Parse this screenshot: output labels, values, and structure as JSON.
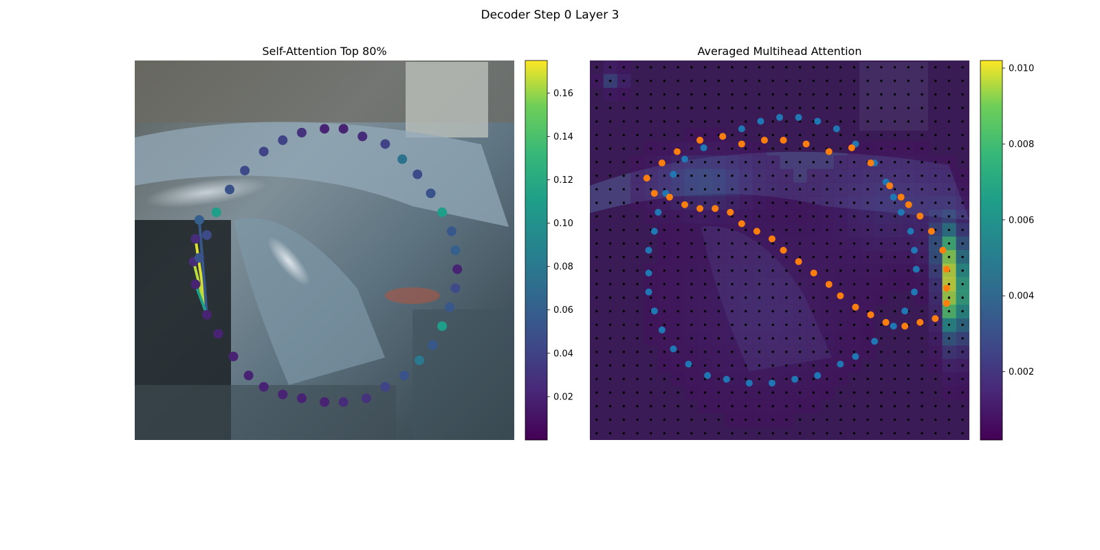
{
  "figure": {
    "suptitle": "Decoder Step 0 Layer 3"
  },
  "chart_data": [
    {
      "type": "scatter",
      "title": "Self-Attention Top 80%",
      "xlabel": "",
      "ylabel": "",
      "colormap": "viridis",
      "colorbar": {
        "min": 0.0,
        "max": 0.175,
        "ticks": [
          0.02,
          0.04,
          0.06,
          0.08,
          0.1,
          0.12,
          0.14,
          0.16
        ]
      },
      "query_point": 4,
      "points": [
        {
          "x": 0.17,
          "y": 0.42,
          "v": 0.06
        },
        {
          "x": 0.16,
          "y": 0.47,
          "v": 0.025
        },
        {
          "x": 0.155,
          "y": 0.53,
          "v": 0.025
        },
        {
          "x": 0.16,
          "y": 0.59,
          "v": 0.02
        },
        {
          "x": 0.19,
          "y": 0.67,
          "v": 0.02
        },
        {
          "x": 0.22,
          "y": 0.72,
          "v": 0.02
        },
        {
          "x": 0.26,
          "y": 0.78,
          "v": 0.02
        },
        {
          "x": 0.3,
          "y": 0.83,
          "v": 0.02
        },
        {
          "x": 0.34,
          "y": 0.86,
          "v": 0.02
        },
        {
          "x": 0.39,
          "y": 0.88,
          "v": 0.02
        },
        {
          "x": 0.44,
          "y": 0.89,
          "v": 0.02
        },
        {
          "x": 0.5,
          "y": 0.9,
          "v": 0.02
        },
        {
          "x": 0.55,
          "y": 0.9,
          "v": 0.025
        },
        {
          "x": 0.61,
          "y": 0.89,
          "v": 0.03
        },
        {
          "x": 0.66,
          "y": 0.86,
          "v": 0.04
        },
        {
          "x": 0.71,
          "y": 0.83,
          "v": 0.05
        },
        {
          "x": 0.75,
          "y": 0.79,
          "v": 0.08
        },
        {
          "x": 0.785,
          "y": 0.75,
          "v": 0.055
        },
        {
          "x": 0.81,
          "y": 0.7,
          "v": 0.11
        },
        {
          "x": 0.83,
          "y": 0.65,
          "v": 0.055
        },
        {
          "x": 0.845,
          "y": 0.6,
          "v": 0.045
        },
        {
          "x": 0.85,
          "y": 0.55,
          "v": 0.02
        },
        {
          "x": 0.845,
          "y": 0.5,
          "v": 0.06
        },
        {
          "x": 0.835,
          "y": 0.45,
          "v": 0.055
        },
        {
          "x": 0.81,
          "y": 0.4,
          "v": 0.11
        },
        {
          "x": 0.78,
          "y": 0.35,
          "v": 0.05
        },
        {
          "x": 0.745,
          "y": 0.3,
          "v": 0.045
        },
        {
          "x": 0.705,
          "y": 0.26,
          "v": 0.075
        },
        {
          "x": 0.66,
          "y": 0.22,
          "v": 0.04
        },
        {
          "x": 0.6,
          "y": 0.2,
          "v": 0.025
        },
        {
          "x": 0.55,
          "y": 0.18,
          "v": 0.02
        },
        {
          "x": 0.5,
          "y": 0.18,
          "v": 0.02
        },
        {
          "x": 0.44,
          "y": 0.19,
          "v": 0.03
        },
        {
          "x": 0.39,
          "y": 0.21,
          "v": 0.04
        },
        {
          "x": 0.34,
          "y": 0.24,
          "v": 0.04
        },
        {
          "x": 0.29,
          "y": 0.29,
          "v": 0.045
        },
        {
          "x": 0.25,
          "y": 0.34,
          "v": 0.05
        },
        {
          "x": 0.215,
          "y": 0.4,
          "v": 0.11
        },
        {
          "x": 0.19,
          "y": 0.46,
          "v": 0.045
        },
        {
          "x": 0.17,
          "y": 0.52,
          "v": 0.05
        }
      ],
      "edges": [
        {
          "from": 4,
          "to": 1,
          "v": 0.17
        },
        {
          "from": 4,
          "to": 2,
          "v": 0.165
        },
        {
          "from": 4,
          "to": 0,
          "v": 0.055
        },
        {
          "from": 4,
          "to": 3,
          "v": 0.11
        }
      ]
    },
    {
      "type": "heatmap",
      "title": "Averaged Multihead Attention",
      "xlabel": "",
      "ylabel": "",
      "colormap": "viridis",
      "colorbar": {
        "min": 0.0002,
        "max": 0.0102,
        "ticks": [
          0.002,
          0.004,
          0.006,
          0.008,
          0.01
        ]
      },
      "grid": {
        "cols": 28,
        "rows": 28,
        "reference_points": true
      },
      "hotspots": [
        {
          "x": 0.96,
          "y": 0.62,
          "sx": 0.025,
          "sy": 0.09,
          "v": 0.0098
        },
        {
          "x": 0.94,
          "y": 0.49,
          "sx": 0.03,
          "sy": 0.06,
          "v": 0.0045
        },
        {
          "x": 0.3,
          "y": 0.32,
          "sx": 0.08,
          "sy": 0.05,
          "v": 0.0028
        },
        {
          "x": 0.06,
          "y": 0.05,
          "sx": 0.02,
          "sy": 0.02,
          "v": 0.003
        },
        {
          "x": 0.8,
          "y": 0.4,
          "sx": 0.1,
          "sy": 0.08,
          "v": 0.0015
        },
        {
          "x": 0.45,
          "y": 0.65,
          "sx": 0.15,
          "sy": 0.15,
          "v": 0.0008
        }
      ],
      "series": [
        {
          "color": "#1f77b4",
          "points": [
            [
              0.17,
              0.45
            ],
            [
              0.155,
              0.5
            ],
            [
              0.155,
              0.56
            ],
            [
              0.155,
              0.61
            ],
            [
              0.17,
              0.66
            ],
            [
              0.19,
              0.71
            ],
            [
              0.22,
              0.76
            ],
            [
              0.26,
              0.8
            ],
            [
              0.31,
              0.83
            ],
            [
              0.36,
              0.84
            ],
            [
              0.42,
              0.85
            ],
            [
              0.48,
              0.85
            ],
            [
              0.54,
              0.84
            ],
            [
              0.6,
              0.83
            ],
            [
              0.66,
              0.8
            ],
            [
              0.7,
              0.78
            ],
            [
              0.75,
              0.74
            ],
            [
              0.8,
              0.7
            ],
            [
              0.83,
              0.66
            ],
            [
              0.855,
              0.61
            ],
            [
              0.86,
              0.55
            ],
            [
              0.855,
              0.5
            ],
            [
              0.845,
              0.45
            ],
            [
              0.82,
              0.4
            ],
            [
              0.8,
              0.36
            ],
            [
              0.78,
              0.32
            ],
            [
              0.75,
              0.27
            ],
            [
              0.7,
              0.22
            ],
            [
              0.65,
              0.18
            ],
            [
              0.6,
              0.16
            ],
            [
              0.55,
              0.15
            ],
            [
              0.5,
              0.15
            ],
            [
              0.45,
              0.16
            ],
            [
              0.4,
              0.18
            ],
            [
              0.35,
              0.2
            ],
            [
              0.3,
              0.23
            ],
            [
              0.25,
              0.26
            ],
            [
              0.22,
              0.3
            ],
            [
              0.2,
              0.35
            ],
            [
              0.18,
              0.4
            ]
          ]
        },
        {
          "color": "#ff7f0e",
          "points": [
            [
              0.15,
              0.31
            ],
            [
              0.17,
              0.35
            ],
            [
              0.21,
              0.36
            ],
            [
              0.25,
              0.38
            ],
            [
              0.29,
              0.39
            ],
            [
              0.33,
              0.39
            ],
            [
              0.37,
              0.4
            ],
            [
              0.4,
              0.43
            ],
            [
              0.44,
              0.45
            ],
            [
              0.48,
              0.47
            ],
            [
              0.51,
              0.5
            ],
            [
              0.55,
              0.53
            ],
            [
              0.59,
              0.56
            ],
            [
              0.63,
              0.59
            ],
            [
              0.66,
              0.62
            ],
            [
              0.7,
              0.65
            ],
            [
              0.74,
              0.67
            ],
            [
              0.78,
              0.69
            ],
            [
              0.83,
              0.7
            ],
            [
              0.87,
              0.69
            ],
            [
              0.91,
              0.68
            ],
            [
              0.94,
              0.64
            ],
            [
              0.94,
              0.6
            ],
            [
              0.94,
              0.55
            ],
            [
              0.93,
              0.5
            ],
            [
              0.9,
              0.45
            ],
            [
              0.87,
              0.41
            ],
            [
              0.84,
              0.38
            ],
            [
              0.82,
              0.36
            ],
            [
              0.79,
              0.33
            ],
            [
              0.74,
              0.27
            ],
            [
              0.69,
              0.23
            ],
            [
              0.63,
              0.24
            ],
            [
              0.57,
              0.22
            ],
            [
              0.51,
              0.21
            ],
            [
              0.46,
              0.21
            ],
            [
              0.4,
              0.22
            ],
            [
              0.35,
              0.2
            ],
            [
              0.29,
              0.21
            ],
            [
              0.23,
              0.24
            ],
            [
              0.19,
              0.27
            ]
          ]
        }
      ]
    }
  ]
}
